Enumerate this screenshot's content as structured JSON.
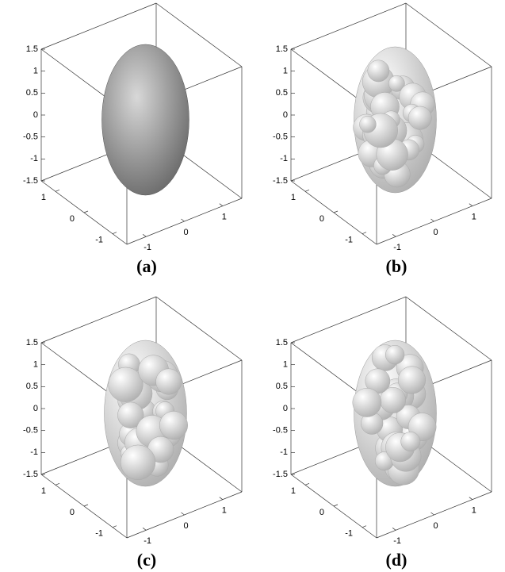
{
  "chart_data": [
    {
      "type": "surface3d",
      "title": "(a)",
      "xlim": [
        -1.5,
        1.5
      ],
      "ylim": [
        -1.5,
        1.5
      ],
      "zlim": [
        -1.5,
        1.5
      ],
      "xticks": [
        -1,
        0,
        1
      ],
      "yticks": [
        -1,
        0,
        1
      ],
      "zticks": [
        -1.5,
        -1,
        -0.5,
        0,
        0.5,
        1,
        1.5
      ],
      "color": "#8c8c8c"
    },
    {
      "type": "surface3d",
      "title": "(b)",
      "xlim": [
        -1.5,
        1.5
      ],
      "ylim": [
        -1.5,
        1.5
      ],
      "zlim": [
        -1.5,
        1.5
      ],
      "xticks": [
        -1,
        0,
        1
      ],
      "yticks": [
        -1,
        0,
        1
      ],
      "zticks": [
        -1.5,
        -1,
        -0.5,
        0,
        0.5,
        1,
        1.5
      ],
      "color": "#c8c8c8"
    },
    {
      "type": "surface3d",
      "title": "(c)",
      "xlim": [
        -1.5,
        1.5
      ],
      "ylim": [
        -1.5,
        1.5
      ],
      "zlim": [
        -1.5,
        1.5
      ],
      "xticks": [
        -1,
        0,
        1
      ],
      "yticks": [
        -1,
        0,
        1
      ],
      "zticks": [
        -1.5,
        -1,
        -0.5,
        0,
        0.5,
        1,
        1.5
      ],
      "color": "#c8c8c8"
    },
    {
      "type": "surface3d",
      "title": "(d)",
      "xlim": [
        -1.5,
        1.5
      ],
      "ylim": [
        -1.5,
        1.5
      ],
      "zlim": [
        -1.5,
        1.5
      ],
      "xticks": [
        -1,
        0,
        1
      ],
      "yticks": [
        -1,
        0,
        1
      ],
      "zticks": [
        -1.5,
        -1,
        -0.5,
        0,
        0.5,
        1,
        1.5
      ],
      "color": "#c8c8c8"
    }
  ]
}
